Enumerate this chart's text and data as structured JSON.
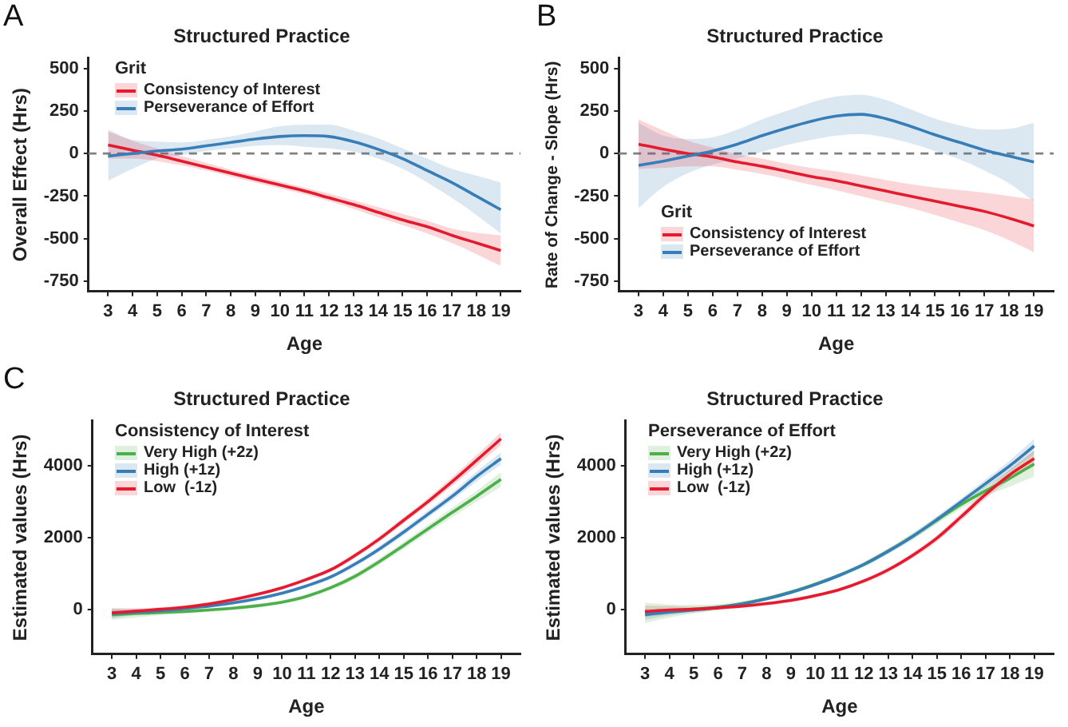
{
  "chart_data": [
    {
      "type": "line",
      "title": "Structured Practice",
      "xlabel": "Age",
      "ylabel": "Overall Effect (Hrs)",
      "annotations": [
        "A"
      ],
      "legend_title": "Grit",
      "legend": "top left",
      "marker": "none",
      "line_style": "solid",
      "x": [
        3,
        4,
        5,
        6,
        7,
        8,
        9,
        10,
        11,
        12,
        13,
        14,
        15,
        16,
        17,
        18,
        19
      ],
      "xlim": [
        2.2,
        19.8
      ],
      "xticks": [
        3,
        4,
        5,
        6,
        7,
        8,
        9,
        10,
        11,
        12,
        13,
        14,
        15,
        16,
        17,
        18,
        19
      ],
      "ylim": [
        -810,
        560
      ],
      "yticks": [
        -750,
        -500,
        -250,
        0,
        250,
        500
      ],
      "ref_lines": [
        {
          "axis": "y",
          "value": 0,
          "color": "#808080",
          "line_style": "dashed"
        }
      ],
      "series": [
        {
          "name": "Consistency of Interest",
          "color": "#e41a2e",
          "values": [
            50,
            20,
            -10,
            -45,
            -80,
            -115,
            -150,
            -185,
            -220,
            -260,
            -300,
            -345,
            -390,
            -430,
            -480,
            -525,
            -570
          ],
          "lower": [
            -30,
            -30,
            -45,
            -70,
            -100,
            -135,
            -170,
            -205,
            -240,
            -280,
            -325,
            -375,
            -420,
            -470,
            -525,
            -590,
            -660
          ],
          "upper": [
            130,
            75,
            30,
            -15,
            -55,
            -95,
            -130,
            -165,
            -200,
            -235,
            -275,
            -315,
            -355,
            -395,
            -440,
            -465,
            -480
          ]
        },
        {
          "name": "Perseverance of Effort",
          "color": "#377eb8",
          "values": [
            -15,
            0,
            15,
            25,
            45,
            65,
            85,
            100,
            105,
            100,
            70,
            25,
            -30,
            -100,
            -170,
            -250,
            -330
          ],
          "lower": [
            -160,
            -90,
            -30,
            -10,
            15,
            30,
            45,
            50,
            40,
            30,
            10,
            -30,
            -90,
            -170,
            -260,
            -360,
            -470
          ],
          "upper": [
            140,
            80,
            70,
            65,
            80,
            100,
            130,
            160,
            170,
            170,
            135,
            90,
            30,
            -30,
            -90,
            -130,
            -170
          ]
        }
      ]
    },
    {
      "type": "line",
      "title": "Structured Practice",
      "xlabel": "Age",
      "ylabel": "Rate of Change - Slope (Hrs)",
      "annotations": [
        "B"
      ],
      "legend_title": "Grit",
      "legend": "bottom left",
      "marker": "none",
      "line_style": "solid",
      "x": [
        3,
        4,
        5,
        6,
        7,
        8,
        9,
        10,
        11,
        12,
        13,
        14,
        15,
        16,
        17,
        18,
        19
      ],
      "xlim": [
        2.2,
        19.8
      ],
      "xticks": [
        3,
        4,
        5,
        6,
        7,
        8,
        9,
        10,
        11,
        12,
        13,
        14,
        15,
        16,
        17,
        18,
        19
      ],
      "ylim": [
        -810,
        560
      ],
      "yticks": [
        -750,
        -500,
        -250,
        0,
        250,
        500
      ],
      "ref_lines": [
        {
          "axis": "y",
          "value": 0,
          "color": "#808080",
          "line_style": "dashed"
        }
      ],
      "series": [
        {
          "name": "Consistency of Interest",
          "color": "#e41a2e",
          "values": [
            55,
            25,
            0,
            -20,
            -50,
            -75,
            -105,
            -135,
            -160,
            -190,
            -220,
            -250,
            -280,
            -310,
            -340,
            -380,
            -425
          ],
          "lower": [
            -90,
            -85,
            -75,
            -75,
            -95,
            -120,
            -150,
            -185,
            -215,
            -250,
            -285,
            -320,
            -360,
            -405,
            -450,
            -510,
            -580
          ],
          "upper": [
            200,
            135,
            75,
            35,
            -5,
            -30,
            -60,
            -85,
            -105,
            -130,
            -155,
            -180,
            -200,
            -215,
            -230,
            -250,
            -270
          ]
        },
        {
          "name": "Perseverance of Effort",
          "color": "#377eb8",
          "values": [
            -70,
            -45,
            -15,
            15,
            55,
            105,
            150,
            190,
            220,
            230,
            205,
            160,
            110,
            65,
            20,
            -15,
            -50
          ],
          "lower": [
            -320,
            -195,
            -115,
            -65,
            -30,
            10,
            50,
            80,
            105,
            115,
            95,
            60,
            15,
            -35,
            -100,
            -175,
            -280
          ],
          "upper": [
            180,
            105,
            85,
            95,
            140,
            200,
            250,
            300,
            335,
            345,
            315,
            260,
            205,
            165,
            140,
            145,
            180
          ]
        }
      ]
    },
    {
      "type": "line",
      "title": "Structured Practice",
      "xlabel": "Age",
      "ylabel": "Estimated values (Hrs)",
      "annotations": [
        "C"
      ],
      "legend_title": "Consistency of Interest",
      "legend": "top left",
      "marker": "none",
      "line_style": "solid",
      "x": [
        3,
        4,
        5,
        6,
        7,
        8,
        9,
        10,
        11,
        12,
        13,
        14,
        15,
        16,
        17,
        18,
        19
      ],
      "xlim": [
        2.2,
        19.8
      ],
      "xticks": [
        3,
        4,
        5,
        6,
        7,
        8,
        9,
        10,
        11,
        12,
        13,
        14,
        15,
        16,
        17,
        18,
        19
      ],
      "ylim": [
        -1250,
        5250
      ],
      "yticks": [
        0,
        2000,
        4000
      ],
      "series": [
        {
          "name": "Very High (+2z)",
          "color": "#4daf4a",
          "values": [
            -150,
            -120,
            -90,
            -60,
            -20,
            30,
            100,
            200,
            360,
            600,
            920,
            1330,
            1780,
            2240,
            2700,
            3150,
            3620
          ],
          "lower": [
            -300,
            -230,
            -170,
            -120,
            -70,
            -20,
            50,
            150,
            300,
            530,
            840,
            1240,
            1680,
            2130,
            2570,
            3000,
            3420
          ],
          "upper": [
            0,
            -10,
            -10,
            0,
            30,
            80,
            150,
            250,
            420,
            670,
            1000,
            1420,
            1880,
            2350,
            2830,
            3300,
            3820
          ]
        },
        {
          "name": "High (+1z)",
          "color": "#377eb8",
          "values": [
            -120,
            -80,
            -40,
            20,
            90,
            180,
            300,
            450,
            650,
            900,
            1260,
            1680,
            2150,
            2650,
            3150,
            3700,
            4200
          ],
          "lower": [
            -250,
            -160,
            -100,
            -30,
            40,
            130,
            250,
            400,
            600,
            840,
            1190,
            1600,
            2060,
            2550,
            3040,
            3560,
            4030
          ],
          "upper": [
            10,
            0,
            20,
            70,
            140,
            230,
            350,
            500,
            700,
            960,
            1330,
            1760,
            2240,
            2750,
            3260,
            3840,
            4370
          ]
        },
        {
          "name": "Low  (-1z)",
          "color": "#e41a2e",
          "values": [
            -100,
            -50,
            0,
            60,
            150,
            270,
            420,
            600,
            830,
            1100,
            1500,
            1960,
            2480,
            3000,
            3560,
            4150,
            4750
          ],
          "lower": [
            -230,
            -130,
            -60,
            10,
            100,
            220,
            370,
            550,
            780,
            1040,
            1430,
            1880,
            2390,
            2900,
            3440,
            4000,
            4570
          ],
          "upper": [
            30,
            30,
            60,
            110,
            200,
            320,
            470,
            650,
            880,
            1160,
            1570,
            2040,
            2570,
            3100,
            3680,
            4300,
            4930
          ]
        }
      ]
    },
    {
      "type": "line",
      "title": "Structured Practice",
      "xlabel": "Age",
      "ylabel": "Estimated values (Hrs)",
      "legend_title": "Perseverance of Effort",
      "legend": "top left",
      "marker": "none",
      "line_style": "solid",
      "x": [
        3,
        4,
        5,
        6,
        7,
        8,
        9,
        10,
        11,
        12,
        13,
        14,
        15,
        16,
        17,
        18,
        19
      ],
      "xlim": [
        2.2,
        19.8
      ],
      "xticks": [
        3,
        4,
        5,
        6,
        7,
        8,
        9,
        10,
        11,
        12,
        13,
        14,
        15,
        16,
        17,
        18,
        19
      ],
      "ylim": [
        -1250,
        5250
      ],
      "yticks": [
        0,
        2000,
        4000
      ],
      "series": [
        {
          "name": "Very High (+2z)",
          "color": "#4daf4a",
          "values": [
            -100,
            -50,
            0,
            60,
            160,
            300,
            480,
            700,
            950,
            1250,
            1620,
            2030,
            2480,
            2920,
            3300,
            3650,
            4050
          ],
          "lower": [
            -380,
            -230,
            -120,
            -20,
            90,
            240,
            420,
            640,
            890,
            1180,
            1540,
            1940,
            2380,
            2800,
            3150,
            3420,
            3700
          ],
          "upper": [
            180,
            130,
            120,
            140,
            230,
            360,
            540,
            760,
            1010,
            1320,
            1700,
            2120,
            2580,
            3040,
            3450,
            3880,
            4400
          ]
        },
        {
          "name": "High (+1z)",
          "color": "#377eb8",
          "values": [
            -150,
            -80,
            -20,
            50,
            150,
            290,
            470,
            690,
            950,
            1250,
            1620,
            2030,
            2500,
            3000,
            3500,
            4000,
            4550
          ],
          "lower": [
            -300,
            -170,
            -90,
            -10,
            100,
            240,
            420,
            640,
            900,
            1190,
            1550,
            1950,
            2410,
            2900,
            3380,
            3850,
            4350
          ],
          "upper": [
            0,
            10,
            50,
            110,
            200,
            340,
            520,
            740,
            1000,
            1310,
            1690,
            2110,
            2590,
            3100,
            3620,
            4150,
            4750
          ]
        },
        {
          "name": "Low  (-1z)",
          "color": "#e41a2e",
          "values": [
            -60,
            -20,
            0,
            40,
            90,
            160,
            250,
            380,
            550,
            790,
            1100,
            1500,
            1980,
            2580,
            3200,
            3750,
            4200
          ],
          "lower": [
            -220,
            -130,
            -70,
            -20,
            40,
            110,
            200,
            330,
            500,
            730,
            1030,
            1420,
            1890,
            2480,
            3080,
            3600,
            3980
          ],
          "upper": [
            100,
            90,
            70,
            100,
            140,
            210,
            300,
            430,
            600,
            850,
            1170,
            1580,
            2070,
            2680,
            3320,
            3900,
            4420
          ]
        }
      ]
    }
  ]
}
